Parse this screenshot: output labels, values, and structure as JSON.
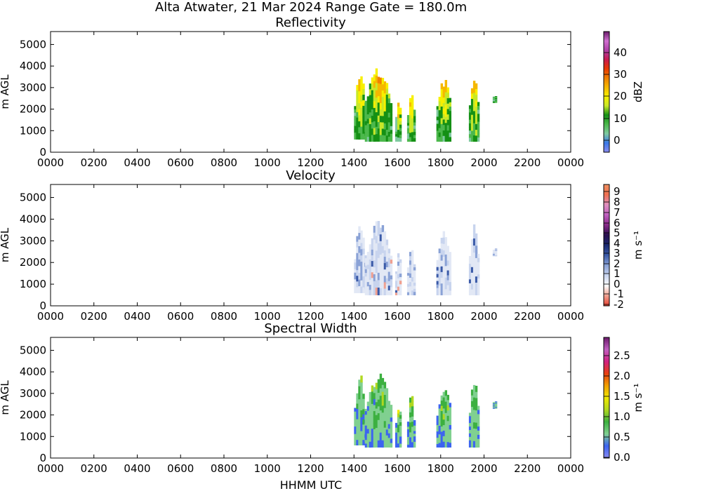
{
  "suptitle": "Alta Atwater, 21 Mar 2024 Range Gate = 180.0m",
  "xlabel": "HHMM UTC",
  "x_ticks": [
    "0000",
    "0200",
    "0400",
    "0600",
    "0800",
    "1000",
    "1200",
    "1400",
    "1600",
    "1800",
    "2000",
    "2200",
    "0000"
  ],
  "y_ticks": [
    "0",
    "1000",
    "2000",
    "3000",
    "4000",
    "5000"
  ],
  "chart_data": [
    {
      "type": "heatmap",
      "title": "Reflectivity",
      "ylabel": "m AGL",
      "xlim_hours": [
        0,
        24
      ],
      "ylim": [
        0,
        5600
      ],
      "colorbar": {
        "label": "dBZ",
        "ticks": [
          "0",
          "10",
          "20",
          "30",
          "40"
        ],
        "range": [
          -5,
          49
        ]
      },
      "echo_regions": [
        {
          "t_start": 14.0,
          "t_end": 14.5,
          "y_bottom": 600,
          "y_top": 3900
        },
        {
          "t_start": 14.5,
          "t_end": 15.7,
          "y_bottom": 500,
          "y_top": 4000
        },
        {
          "t_start": 15.9,
          "t_end": 16.15,
          "y_bottom": 500,
          "y_top": 2600
        },
        {
          "t_start": 16.45,
          "t_end": 16.75,
          "y_bottom": 500,
          "y_top": 3000
        },
        {
          "t_start": 17.8,
          "t_end": 18.45,
          "y_bottom": 500,
          "y_top": 3500
        },
        {
          "t_start": 19.3,
          "t_end": 19.7,
          "y_bottom": 500,
          "y_top": 3800
        },
        {
          "t_start": 20.4,
          "t_end": 20.5,
          "y_bottom": 2300,
          "y_top": 2900
        }
      ]
    },
    {
      "type": "heatmap",
      "title": "Velocity",
      "ylabel": "m s$^{-1}$",
      "ylabel_left": "m AGL",
      "xlim_hours": [
        0,
        24
      ],
      "ylim": [
        0,
        5600
      ],
      "colorbar": {
        "label": "m s⁻¹",
        "ticks": [
          "-2",
          "-1",
          "0",
          "1",
          "2",
          "3",
          "4",
          "5",
          "6",
          "7",
          "8",
          "9"
        ],
        "range": [
          -2,
          9.5
        ]
      }
    },
    {
      "type": "heatmap",
      "title": "Spectral Width",
      "ylabel_left": "m AGL",
      "xlim_hours": [
        0,
        24
      ],
      "ylim": [
        0,
        5600
      ],
      "colorbar": {
        "label": "m s⁻¹",
        "ticks": [
          "0.0",
          "0.5",
          "1.0",
          "1.5",
          "2.0",
          "2.5"
        ],
        "range": [
          0,
          2.9
        ]
      }
    }
  ],
  "colors": {
    "refl_cmap": [
      "#8b8bf0",
      "#3a78e6",
      "#7fc9a0",
      "#4cb84c",
      "#159015",
      "#c8e828",
      "#f7f000",
      "#f5b800",
      "#f08000",
      "#e83800",
      "#c81a50",
      "#b040a8",
      "#d070d0",
      "#6a1a6a"
    ],
    "vel_cmap": [
      "#e84030",
      "#f0a090",
      "#ffffff",
      "#c8d4ee",
      "#8aa2d6",
      "#3a5aa8",
      "#1a2a70",
      "#2a1050",
      "#8a2a8a",
      "#c060c0",
      "#e090c0",
      "#f07050",
      "#f09060"
    ],
    "sw_cmap": [
      "#8a8af0",
      "#3c64f0",
      "#80d090",
      "#3cb040",
      "#b0d820",
      "#f0e800",
      "#f0a000",
      "#e84010",
      "#d02080",
      "#c060c0",
      "#6a1a6a"
    ]
  }
}
